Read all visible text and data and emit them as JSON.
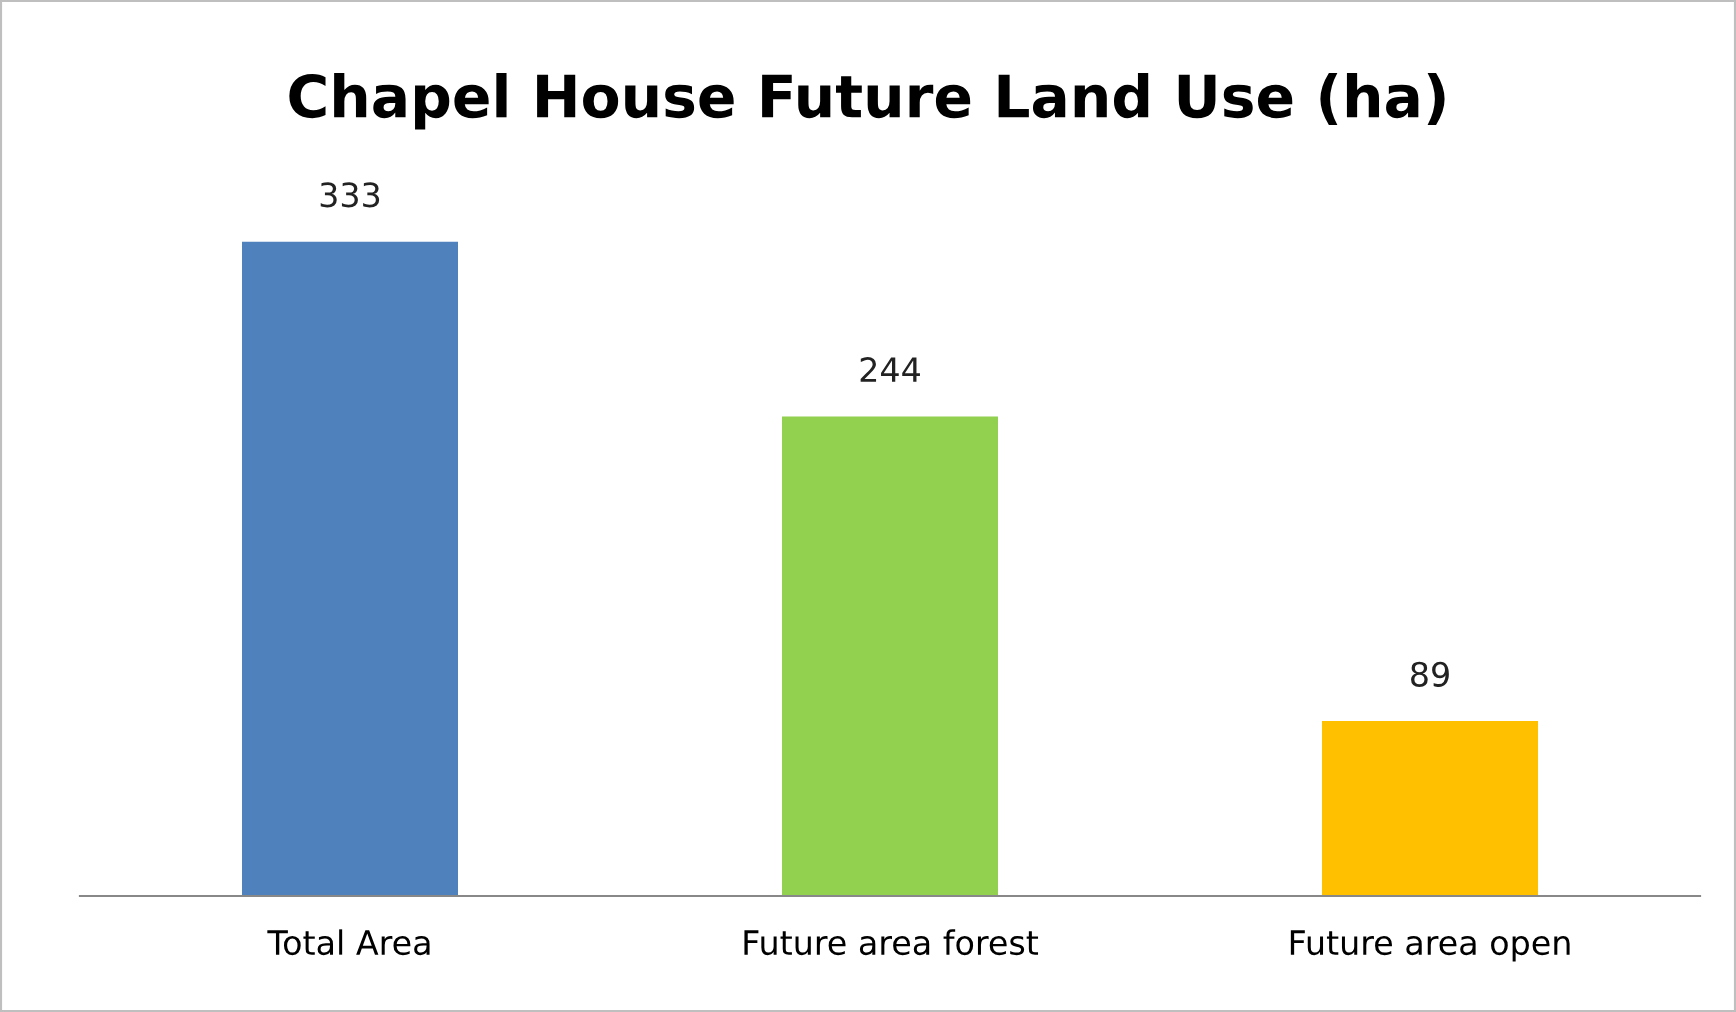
{
  "chart_data": {
    "type": "bar",
    "title": "Chapel House Future Land Use (ha)",
    "categories": [
      "Total Area",
      "Future area forest",
      "Future area open"
    ],
    "values": [
      333,
      244,
      89
    ],
    "colors": [
      "#4f81bd",
      "#92d050",
      "#ffc000"
    ],
    "data_labels": true,
    "grid": false,
    "legend": false
  }
}
